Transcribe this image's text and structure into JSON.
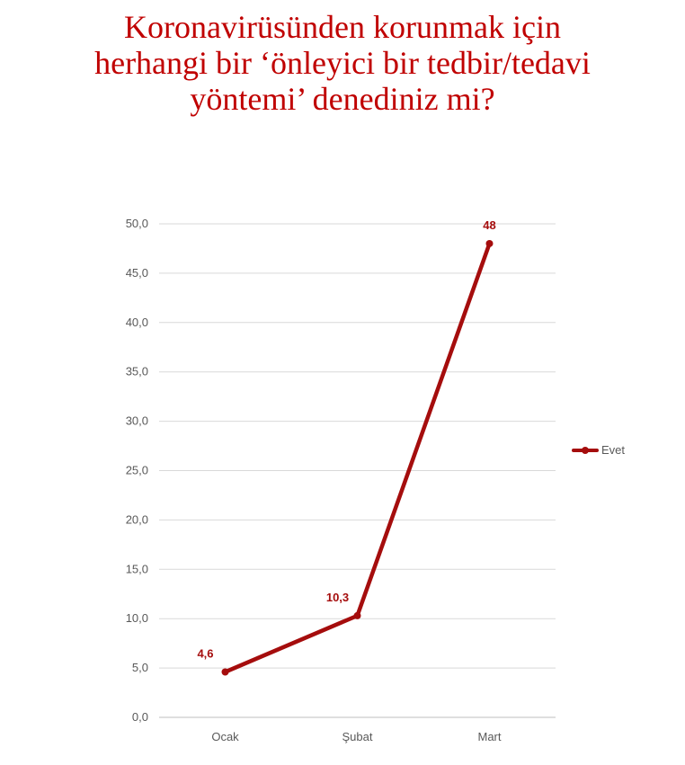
{
  "title_lines": [
    "Koronavirüsünden korunmak için",
    "herhangi bir ‘önleyici bir tedbir/tedavi",
    "yöntemi’ denediniz mi?"
  ],
  "chart_data": {
    "type": "line",
    "title": "Koronavirüsünden korunmak için herhangi bir ‘önleyici bir tedbir/tedavi yöntemi’ denediniz mi?",
    "categories": [
      "Ocak",
      "Şubat",
      "Mart"
    ],
    "series": [
      {
        "name": "Evet",
        "values": [
          4.6,
          10.3,
          48
        ],
        "labels": [
          "4,6",
          "10,3",
          "48"
        ],
        "color": "#a50d0d"
      }
    ],
    "ylim": [
      0,
      50
    ],
    "yticks": [
      "0,0",
      "5,0",
      "10,0",
      "15,0",
      "20,0",
      "25,0",
      "30,0",
      "35,0",
      "40,0",
      "45,0",
      "50,0"
    ],
    "grid": true,
    "legend_position": "right"
  }
}
